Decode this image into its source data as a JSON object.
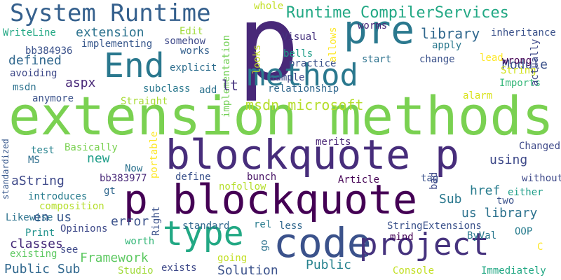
{
  "words": [
    {
      "text": "p",
      "color": "#482878"
    },
    {
      "text": "extension methods",
      "color": "#7ad151"
    },
    {
      "text": "blockquote p",
      "color": "#472d7b"
    },
    {
      "text": "p blockquote",
      "color": "#440154"
    },
    {
      "text": "code",
      "color": "#3b528b"
    },
    {
      "text": "project",
      "color": "#46337e"
    },
    {
      "text": "method",
      "color": "#2a788e"
    },
    {
      "text": "type",
      "color": "#22a884"
    },
    {
      "text": "End",
      "color": "#2a788e"
    },
    {
      "text": "pre",
      "color": "#2a788e"
    },
    {
      "text": "System Runtime",
      "color": "#35608d"
    },
    {
      "text": "Runtime CompilerServices",
      "color": "#22a884"
    },
    {
      "text": "msdn microsoft",
      "color": "#b5de2b"
    },
    {
      "text": "library",
      "color": "#31688e"
    },
    {
      "text": "extension",
      "color": "#2c728e"
    },
    {
      "text": "Module",
      "color": "#3b528b"
    },
    {
      "text": "aspx",
      "color": "#482878"
    },
    {
      "text": "defined",
      "color": "#31688e"
    },
    {
      "text": "us library",
      "color": "#2c728e"
    },
    {
      "text": "Public Sub",
      "color": "#31688e"
    },
    {
      "text": "Framework",
      "color": "#5ec962"
    },
    {
      "text": "Solution",
      "color": "#3b528b"
    },
    {
      "text": "Public",
      "color": "#26828e"
    },
    {
      "text": "classes",
      "color": "#472c7a"
    },
    {
      "text": "en us",
      "color": "#38588c"
    },
    {
      "text": "error",
      "color": "#3b528b"
    },
    {
      "text": "href",
      "color": "#287c8e"
    },
    {
      "text": "using",
      "color": "#3e4989"
    },
    {
      "text": "new",
      "color": "#1f9e89"
    },
    {
      "text": "Sub",
      "color": "#2a788e"
    },
    {
      "text": "aString",
      "color": "#3e4989"
    },
    {
      "text": "Article",
      "color": "#440154"
    },
    {
      "text": "implementation",
      "color": "#73d056"
    },
    {
      "text": "lt",
      "color": "#46337e"
    },
    {
      "text": "Straight",
      "color": "#a8db34"
    },
    {
      "text": "Basically",
      "color": "#7ad151"
    },
    {
      "text": "bb383977",
      "color": "#482878"
    },
    {
      "text": "introduces",
      "color": "#287c8e"
    },
    {
      "text": "nofollow",
      "color": "#b5de2b"
    },
    {
      "text": "mind",
      "color": "#440154"
    },
    {
      "text": "ByVal",
      "color": "#2a788e"
    },
    {
      "text": "Console",
      "color": "#c2df23"
    },
    {
      "text": "Immediately",
      "color": "#22a884"
    },
    {
      "text": "existing",
      "color": "#5ec962"
    },
    {
      "text": "composition",
      "color": "#b5de2b"
    },
    {
      "text": "worth",
      "color": "#35b779"
    },
    {
      "text": "Studio",
      "color": "#a0da39"
    },
    {
      "text": "exists",
      "color": "#3e4989"
    },
    {
      "text": "going",
      "color": "#c2df23"
    },
    {
      "text": "go",
      "color": "#2c728e"
    },
    {
      "text": "rel",
      "color": "#287c8e"
    },
    {
      "text": "less",
      "color": "#31688e"
    },
    {
      "text": "StringExtensions",
      "color": "#3b528b"
    },
    {
      "text": "OOP",
      "color": "#287c8e"
    },
    {
      "text": "C",
      "color": "#fde725"
    },
    {
      "text": "Print",
      "color": "#20928c"
    },
    {
      "text": "Opinions",
      "color": "#3e4989"
    },
    {
      "text": "see",
      "color": "#3e4989"
    },
    {
      "text": "Likewise",
      "color": "#2c728e"
    },
    {
      "text": "standardized",
      "color": "#38588c"
    },
    {
      "text": "MS",
      "color": "#2e6e8e"
    },
    {
      "text": "test",
      "color": "#26828e"
    },
    {
      "text": "Now",
      "color": "#2c728e"
    },
    {
      "text": "gt",
      "color": "#31688e"
    },
    {
      "text": "define",
      "color": "#3b528b"
    },
    {
      "text": "bunch",
      "color": "#471365"
    },
    {
      "text": "merits",
      "color": "#482475"
    },
    {
      "text": "portable",
      "color": "#fde725"
    },
    {
      "text": "Right",
      "color": "#3b528b"
    },
    {
      "text": "standard",
      "color": "#31688e"
    },
    {
      "text": "tag",
      "color": "#3b528b"
    },
    {
      "text": "bad",
      "color": "#3e4989"
    },
    {
      "text": "Changed",
      "color": "#3e4989"
    },
    {
      "text": "two",
      "color": "#3b528b"
    },
    {
      "text": "without",
      "color": "#3e4989"
    },
    {
      "text": "either",
      "color": "#1f9e89"
    },
    {
      "text": "WriteLine",
      "color": "#22a884"
    },
    {
      "text": "bb384936",
      "color": "#3b528b"
    },
    {
      "text": "implementing",
      "color": "#38588c"
    },
    {
      "text": "avoiding",
      "color": "#3e4989"
    },
    {
      "text": "msdn",
      "color": "#2c728e"
    },
    {
      "text": "anymore",
      "color": "#3b528b"
    },
    {
      "text": "Edit",
      "color": "#a0da39"
    },
    {
      "text": "somehow",
      "color": "#3e4989"
    },
    {
      "text": "works",
      "color": "#35608d"
    },
    {
      "text": "explicit",
      "color": "#2e6e8e"
    },
    {
      "text": "subclass",
      "color": "#2a788e"
    },
    {
      "text": "add",
      "color": "#2c728e"
    },
    {
      "text": "looks",
      "color": "#c2df23"
    },
    {
      "text": "sample",
      "color": "#3e4989"
    },
    {
      "text": "relationship",
      "color": "#31688e"
    },
    {
      "text": "Visual",
      "color": "#46337e"
    },
    {
      "text": "bells",
      "color": "#1f9e89"
    },
    {
      "text": "practice",
      "color": "#3b528b"
    },
    {
      "text": "allows",
      "color": "#fde725"
    },
    {
      "text": "start",
      "color": "#2c728e"
    },
    {
      "text": "whole",
      "color": "#c2df23"
    },
    {
      "text": "worms",
      "color": "#482878"
    },
    {
      "text": "apply",
      "color": "#2a788e"
    },
    {
      "text": "change",
      "color": "#3b528b"
    },
    {
      "text": "inheritance",
      "color": "#3b528b"
    },
    {
      "text": "lead",
      "color": "#fde725"
    },
    {
      "text": "wrong",
      "color": "#440154"
    },
    {
      "text": "String",
      "color": "#d2e21b"
    },
    {
      "text": "Imports",
      "color": "#35b779"
    },
    {
      "text": "actually",
      "color": "#3e4989"
    },
    {
      "text": "alarm",
      "color": "#d8e219"
    }
  ]
}
